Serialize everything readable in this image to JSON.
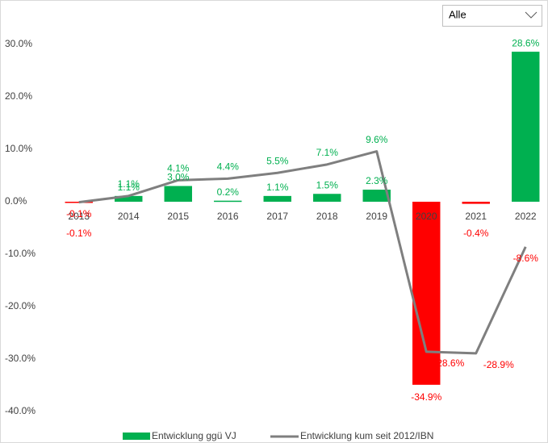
{
  "chart_data": {
    "type": "bar_line",
    "categories": [
      "2013",
      "2014",
      "2015",
      "2016",
      "2017",
      "2018",
      "2019",
      "2020",
      "2021",
      "2022"
    ],
    "series": [
      {
        "name": "Entwicklung ggü VJ",
        "type": "bar",
        "color": "#00b050",
        "negative_color": "#ff0000",
        "values": [
          -0.1,
          1.1,
          3.0,
          0.2,
          1.1,
          1.5,
          2.3,
          -34.9,
          -0.4,
          28.6
        ],
        "value_labels": [
          "-0.1%",
          "1.1%",
          "3.0%",
          "0.2%",
          "1.1%",
          "1.5%",
          "2.3%",
          "-34.9%",
          "-0.4%",
          "28.6%"
        ]
      },
      {
        "name": "Entwicklung kum seit 2012/IBN",
        "type": "line",
        "color": "#7f7f7f",
        "values": [
          -0.1,
          1.1,
          4.1,
          4.4,
          5.5,
          7.1,
          9.6,
          -28.6,
          -28.9,
          -8.6
        ],
        "value_labels": [
          "-0.1%",
          "1.1%",
          "4.1%",
          "4.4%",
          "5.5%",
          "7.1%",
          "9.6%",
          "-28.6%",
          "-28.9%",
          "-8.6%"
        ]
      }
    ],
    "ylim": [
      -42,
      32
    ],
    "yticks": [
      {
        "value": 30,
        "label": "30.0%"
      },
      {
        "value": 20,
        "label": "20.0%"
      },
      {
        "value": 10,
        "label": "10.0%"
      },
      {
        "value": 0,
        "label": "0.0%"
      },
      {
        "value": -10,
        "label": "-10.0%"
      },
      {
        "value": -20,
        "label": "-20.0%"
      },
      {
        "value": -30,
        "label": "-30.0%"
      },
      {
        "value": -40,
        "label": "-40.0%"
      }
    ],
    "grid": false,
    "positive_label_color": "#00b050",
    "negative_label_color": "#ff0000",
    "filter": "Alle"
  }
}
